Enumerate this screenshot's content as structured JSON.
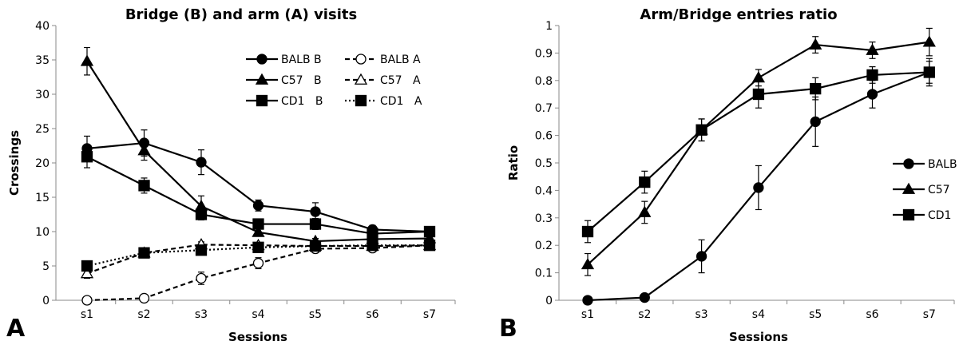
{
  "chart_data": [
    {
      "panel_label": "A",
      "type": "line",
      "title": "Bridge (B) and arm (A) visits",
      "xlabel": "Sessions",
      "ylabel": "Crossings",
      "categories": [
        "s1",
        "s2",
        "s3",
        "s4",
        "s5",
        "s6",
        "s7"
      ],
      "ylim": [
        0,
        40
      ],
      "yticks": [
        0,
        5,
        10,
        15,
        20,
        25,
        30,
        35,
        40
      ],
      "grid": false,
      "legend_position": "top-right",
      "series": [
        {
          "name": "BALB B",
          "marker": "circle",
          "fill": "filled",
          "dash": "solid",
          "values": [
            22.1,
            22.9,
            20.1,
            13.8,
            12.9,
            10.3,
            10.0
          ],
          "errors": [
            1.8,
            1.9,
            1.8,
            0.8,
            1.3,
            0.6,
            0.4
          ]
        },
        {
          "name": "C57   B",
          "marker": "triangle",
          "fill": "filled",
          "dash": "solid",
          "values": [
            34.8,
            21.8,
            13.7,
            9.9,
            8.6,
            8.9,
            9.0
          ],
          "errors": [
            2.0,
            1.4,
            1.5,
            0.5,
            0.4,
            0.4,
            0.4
          ]
        },
        {
          "name": "CD1   B",
          "marker": "square",
          "fill": "filled",
          "dash": "solid",
          "values": [
            20.9,
            16.7,
            12.5,
            11.1,
            11.1,
            9.7,
            10.0
          ],
          "errors": [
            1.6,
            1.1,
            0.8,
            0.7,
            0.8,
            0.5,
            0.4
          ]
        },
        {
          "name": "BALB A",
          "marker": "circle",
          "fill": "open",
          "dash": "dashed",
          "values": [
            0.0,
            0.3,
            3.2,
            5.4,
            7.5,
            7.6,
            8.0
          ],
          "errors": [
            0.1,
            0.2,
            0.9,
            0.8,
            0.5,
            0.4,
            0.3
          ]
        },
        {
          "name": "C57   A",
          "marker": "triangle",
          "fill": "open",
          "dash": "dashed",
          "values": [
            3.9,
            6.9,
            8.1,
            8.0,
            7.9,
            7.9,
            8.0
          ],
          "errors": [
            0.7,
            0.5,
            0.4,
            0.4,
            0.3,
            0.3,
            0.3
          ]
        },
        {
          "name": "CD1   A",
          "marker": "square",
          "fill": "filled",
          "dash": "dotted",
          "values": [
            5.0,
            6.9,
            7.3,
            7.7,
            7.9,
            8.0,
            8.0
          ],
          "errors": [
            0.6,
            0.5,
            0.4,
            0.4,
            0.3,
            0.3,
            0.3
          ]
        }
      ]
    },
    {
      "panel_label": "B",
      "type": "line",
      "title": "Arm/Bridge entries ratio",
      "xlabel": "Sessions",
      "ylabel": "Ratio",
      "categories": [
        "s1",
        "s2",
        "s3",
        "s4",
        "s5",
        "s6",
        "s7"
      ],
      "ylim": [
        0,
        1
      ],
      "yticks": [
        "0",
        "0.1",
        "0.2",
        "0.3",
        "0.4",
        "0.5",
        "0.6",
        "0.7",
        "0.8",
        "0.9",
        "1"
      ],
      "grid": false,
      "legend_position": "right",
      "series": [
        {
          "name": "BALB",
          "marker": "circle",
          "fill": "filled",
          "dash": "solid",
          "values": [
            0.0,
            0.01,
            0.16,
            0.41,
            0.65,
            0.75,
            0.83
          ],
          "errors": [
            0.005,
            0.01,
            0.06,
            0.08,
            0.09,
            0.05,
            0.04
          ]
        },
        {
          "name": "C57",
          "marker": "triangle",
          "fill": "filled",
          "dash": "solid",
          "values": [
            0.13,
            0.32,
            0.62,
            0.81,
            0.93,
            0.91,
            0.94
          ],
          "errors": [
            0.04,
            0.04,
            0.04,
            0.03,
            0.03,
            0.03,
            0.05
          ]
        },
        {
          "name": "CD1",
          "marker": "square",
          "fill": "filled",
          "dash": "solid",
          "values": [
            0.25,
            0.43,
            0.62,
            0.75,
            0.77,
            0.82,
            0.83
          ],
          "errors": [
            0.04,
            0.04,
            0.04,
            0.05,
            0.04,
            0.03,
            0.05
          ]
        }
      ]
    }
  ]
}
